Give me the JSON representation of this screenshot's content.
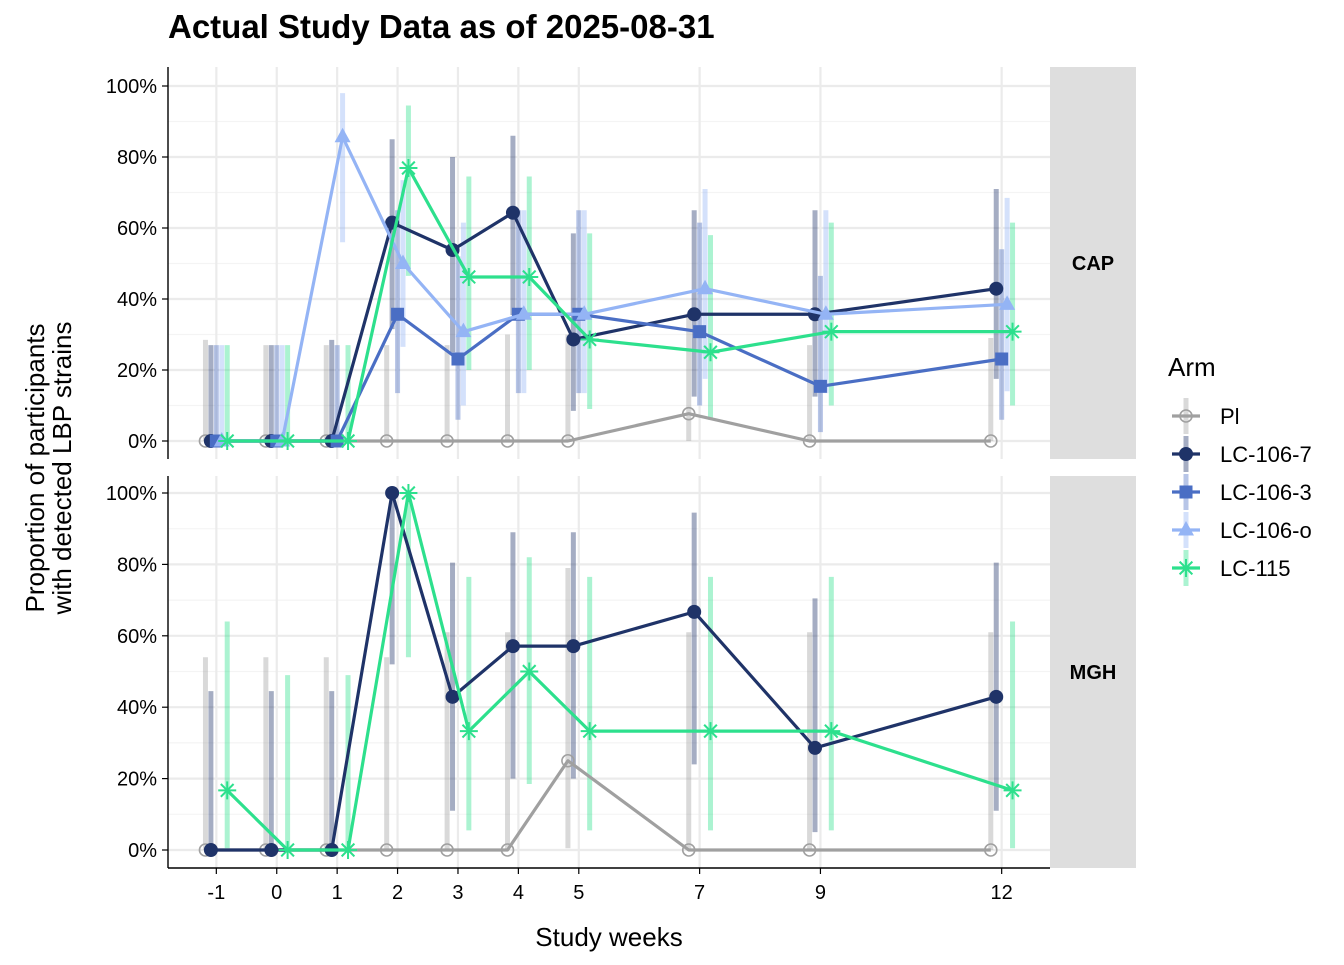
{
  "chart_data": {
    "type": "line",
    "title": "Actual Study Data as of 2025-08-31",
    "xlabel": "Study weeks",
    "ylabel": [
      "Proportion of participants",
      "with detected LBP strains"
    ],
    "x": [
      -1,
      0,
      1,
      2,
      3,
      4,
      5,
      7,
      9,
      12
    ],
    "x_tick_labels": [
      "-1",
      "0",
      "1",
      "2",
      "3",
      "4",
      "5",
      "7",
      "9",
      "12"
    ],
    "y_ticks": [
      0,
      20,
      40,
      60,
      80,
      100
    ],
    "y_tick_labels": [
      "0%",
      "20%",
      "40%",
      "60%",
      "80%",
      "100%"
    ],
    "ylim": [
      0,
      100
    ],
    "grid": true,
    "legend": {
      "title": "Arm",
      "position": "right"
    },
    "series_styles": [
      {
        "name": "Pl",
        "color": "#a0a0a0",
        "marker": "open-circle"
      },
      {
        "name": "LC-106-7",
        "color": "#1f3368",
        "marker": "circle"
      },
      {
        "name": "LC-106-3",
        "color": "#4a6ec4",
        "marker": "square"
      },
      {
        "name": "LC-106-o",
        "color": "#94b4f5",
        "marker": "triangle"
      },
      {
        "name": "LC-115",
        "color": "#2de08d",
        "marker": "asterisk"
      }
    ],
    "panels": [
      {
        "label": "CAP",
        "series": [
          {
            "name": "Pl",
            "values": [
              0,
              0,
              0,
              0,
              0,
              0,
              0,
              7.7,
              0,
              0
            ],
            "err_low": [
              0,
              0,
              0,
              0,
              0,
              0,
              0,
              0,
              0,
              0
            ],
            "err_high": [
              28.5,
              27,
              27,
              27,
              27,
              30,
              30,
              36,
              27,
              29
            ]
          },
          {
            "name": "LC-106-7",
            "values": [
              0,
              0,
              0,
              61.5,
              53.8,
              64.3,
              28.6,
              35.7,
              35.7,
              42.9
            ],
            "err_low": [
              0,
              0,
              0,
              31.5,
              25,
              35.5,
              8.5,
              12.5,
              12.5,
              17.5
            ],
            "err_high": [
              27,
              27,
              28.5,
              85,
              80,
              86,
              58.5,
              65,
              65,
              71
            ]
          },
          {
            "name": "LC-106-3",
            "values": [
              0,
              0,
              0,
              35.7,
              23.1,
              35.7,
              35.7,
              30.8,
              15.4,
              23.1
            ],
            "err_low": [
              0,
              0,
              0,
              13.5,
              6,
              13.5,
              13.5,
              10,
              2.5,
              6
            ],
            "err_high": [
              27,
              27,
              27,
              65,
              52,
              65,
              65,
              61.5,
              46.5,
              54
            ]
          },
          {
            "name": "LC-106-o",
            "values": [
              0,
              0,
              85.7,
              50,
              30.8,
              35.7,
              35.7,
              42.9,
              35.7,
              38.5
            ],
            "err_low": [
              0,
              0,
              56,
              26.5,
              10,
              13.5,
              13.5,
              17.5,
              13.5,
              14
            ],
            "err_high": [
              27,
              27,
              98,
              73.5,
              61.5,
              65,
              65,
              71,
              65,
              68.5
            ]
          },
          {
            "name": "LC-115",
            "values": [
              0,
              0,
              0,
              76.9,
              46.2,
              46.2,
              28.6,
              25,
              30.8,
              30.8
            ],
            "err_low": [
              0,
              0,
              0,
              46.5,
              20,
              20,
              9,
              6,
              10,
              10
            ],
            "err_high": [
              27,
              27,
              27,
              94.5,
              74.5,
              74.5,
              58.5,
              58,
              61.5,
              61.5
            ]
          }
        ]
      },
      {
        "label": "MGH",
        "series": [
          {
            "name": "Pl",
            "values": [
              0,
              0,
              0,
              0,
              0,
              0,
              25,
              0,
              0,
              0
            ],
            "err_low": [
              0,
              0,
              0,
              0,
              0,
              0,
              0.5,
              0,
              0,
              0
            ],
            "err_high": [
              54,
              54,
              54,
              54,
              61,
              61,
              79,
              61,
              61,
              61
            ]
          },
          {
            "name": "LC-106-7",
            "values": [
              0,
              0,
              0,
              100,
              42.9,
              57.1,
              57.1,
              66.7,
              28.6,
              42.9
            ],
            "err_low": [
              0,
              0,
              0,
              52,
              11,
              20,
              20,
              24,
              5,
              11
            ],
            "err_high": [
              44.5,
              44.5,
              44.5,
              100,
              80.5,
              89,
              89,
              94.5,
              70.5,
              80.5
            ]
          },
          {
            "name": "LC-115",
            "values": [
              16.7,
              0,
              0,
              100,
              33.3,
              50,
              33.3,
              33.3,
              33.3,
              16.7
            ],
            "err_low": [
              0.5,
              0,
              0,
              54,
              5.5,
              18.5,
              5.5,
              5.5,
              5.5,
              0.5
            ],
            "err_high": [
              64,
              49,
              49,
              100,
              76.5,
              82,
              76.5,
              76.5,
              76.5,
              64
            ]
          }
        ]
      }
    ]
  }
}
